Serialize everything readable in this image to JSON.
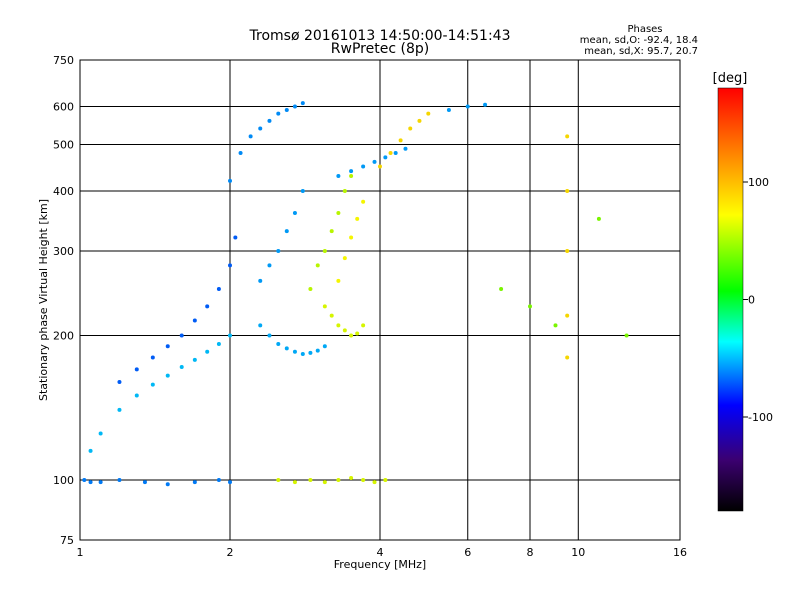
{
  "chart_data": {
    "type": "scatter",
    "title_line1": "Tromsø 20161013 14:50:00-14:51:43",
    "title_line2": "RwPretec (8p)",
    "phases_header": "Phases",
    "stats_o": "mean, sd,O: -92.4, 18.4",
    "stats_x": "mean, sd,X:  95.7, 20.7",
    "xlabel": "Frequency [MHz]",
    "ylabel": "Stationary phase Virtual Height [km]",
    "x_scale": "log",
    "y_scale": "log",
    "xlim": [
      1,
      16
    ],
    "ylim": [
      75,
      750
    ],
    "x_ticks": [
      1,
      2,
      4,
      6,
      8,
      10,
      16
    ],
    "x_tick_labels": [
      "1",
      "2",
      "4",
      "6",
      "8",
      "10",
      "16"
    ],
    "y_ticks": [
      75,
      100,
      200,
      300,
      400,
      500,
      600,
      750
    ],
    "y_tick_labels": [
      "75",
      "100",
      "200",
      "300",
      "400",
      "500",
      "600",
      "750"
    ],
    "grid": true,
    "colorbar": {
      "label": "[deg]",
      "range": [
        -180,
        180
      ],
      "ticks": [
        100,
        0,
        -100
      ],
      "tick_labels": [
        "100",
        "0",
        "-100"
      ]
    },
    "series": [
      {
        "phase": -100,
        "x": [
          1.02,
          1.05,
          1.1,
          1.2,
          1.35,
          1.5,
          1.7,
          1.9,
          2.0
        ],
        "y": [
          100,
          99,
          99,
          100,
          99,
          98,
          99,
          100,
          99
        ]
      },
      {
        "phase": -80,
        "x": [
          1.05,
          1.1,
          1.2,
          1.3,
          1.4,
          1.5,
          1.6,
          1.7,
          1.8,
          1.9,
          2.0
        ],
        "y": [
          115,
          125,
          140,
          150,
          158,
          165,
          172,
          178,
          185,
          192,
          200
        ]
      },
      {
        "phase": -110,
        "x": [
          1.2,
          1.3,
          1.4,
          1.5,
          1.6,
          1.7,
          1.8,
          1.9,
          2.0,
          2.05
        ],
        "y": [
          160,
          170,
          180,
          190,
          200,
          215,
          230,
          250,
          280,
          320
        ]
      },
      {
        "phase": -95,
        "x": [
          2.0,
          2.1,
          2.2,
          2.3,
          2.4,
          2.5,
          2.6,
          2.7,
          2.8
        ],
        "y": [
          420,
          480,
          520,
          540,
          560,
          580,
          590,
          600,
          610
        ]
      },
      {
        "phase": -85,
        "x": [
          2.3,
          2.4,
          2.5,
          2.6,
          2.7,
          2.8,
          2.9,
          3.0,
          3.1
        ],
        "y": [
          210,
          200,
          192,
          188,
          185,
          183,
          184,
          186,
          190
        ]
      },
      {
        "phase": -90,
        "x": [
          2.3,
          2.4,
          2.5,
          2.6,
          2.7,
          2.8
        ],
        "y": [
          260,
          280,
          300,
          330,
          360,
          400
        ]
      },
      {
        "phase": 80,
        "x": [
          2.9,
          3.0,
          3.1,
          3.2,
          3.3,
          3.4,
          3.5
        ],
        "y": [
          250,
          280,
          300,
          330,
          360,
          400,
          430
        ]
      },
      {
        "phase": 90,
        "x": [
          3.1,
          3.2,
          3.3,
          3.4,
          3.5,
          3.6,
          3.7
        ],
        "y": [
          230,
          220,
          210,
          205,
          200,
          202,
          210
        ]
      },
      {
        "phase": 100,
        "x": [
          3.3,
          3.4,
          3.5,
          3.6,
          3.7
        ],
        "y": [
          260,
          290,
          320,
          350,
          380
        ]
      },
      {
        "phase": -90,
        "x": [
          3.3,
          3.5,
          3.7,
          3.9,
          4.1,
          4.3,
          4.5
        ],
        "y": [
          430,
          440,
          450,
          460,
          470,
          480,
          490
        ]
      },
      {
        "phase": 110,
        "x": [
          4.0,
          4.2,
          4.4,
          4.6,
          4.8,
          5.0
        ],
        "y": [
          450,
          480,
          510,
          540,
          560,
          580
        ]
      },
      {
        "phase": 90,
        "x": [
          2.5,
          2.7,
          2.9,
          3.1,
          3.3,
          3.5,
          3.7,
          3.9,
          4.1
        ],
        "y": [
          100,
          99,
          100,
          99,
          100,
          101,
          100,
          99,
          100
        ]
      },
      {
        "phase": -90,
        "x": [
          5.5,
          6.0,
          6.5
        ],
        "y": [
          590,
          600,
          605
        ]
      },
      {
        "phase": 110,
        "x": [
          9.5,
          9.5,
          9.5,
          9.5,
          9.5
        ],
        "y": [
          180,
          220,
          300,
          400,
          520
        ]
      },
      {
        "phase": 60,
        "x": [
          7.0,
          8.0,
          9.0,
          11.0,
          12.5
        ],
        "y": [
          250,
          230,
          210,
          350,
          200
        ]
      }
    ]
  }
}
